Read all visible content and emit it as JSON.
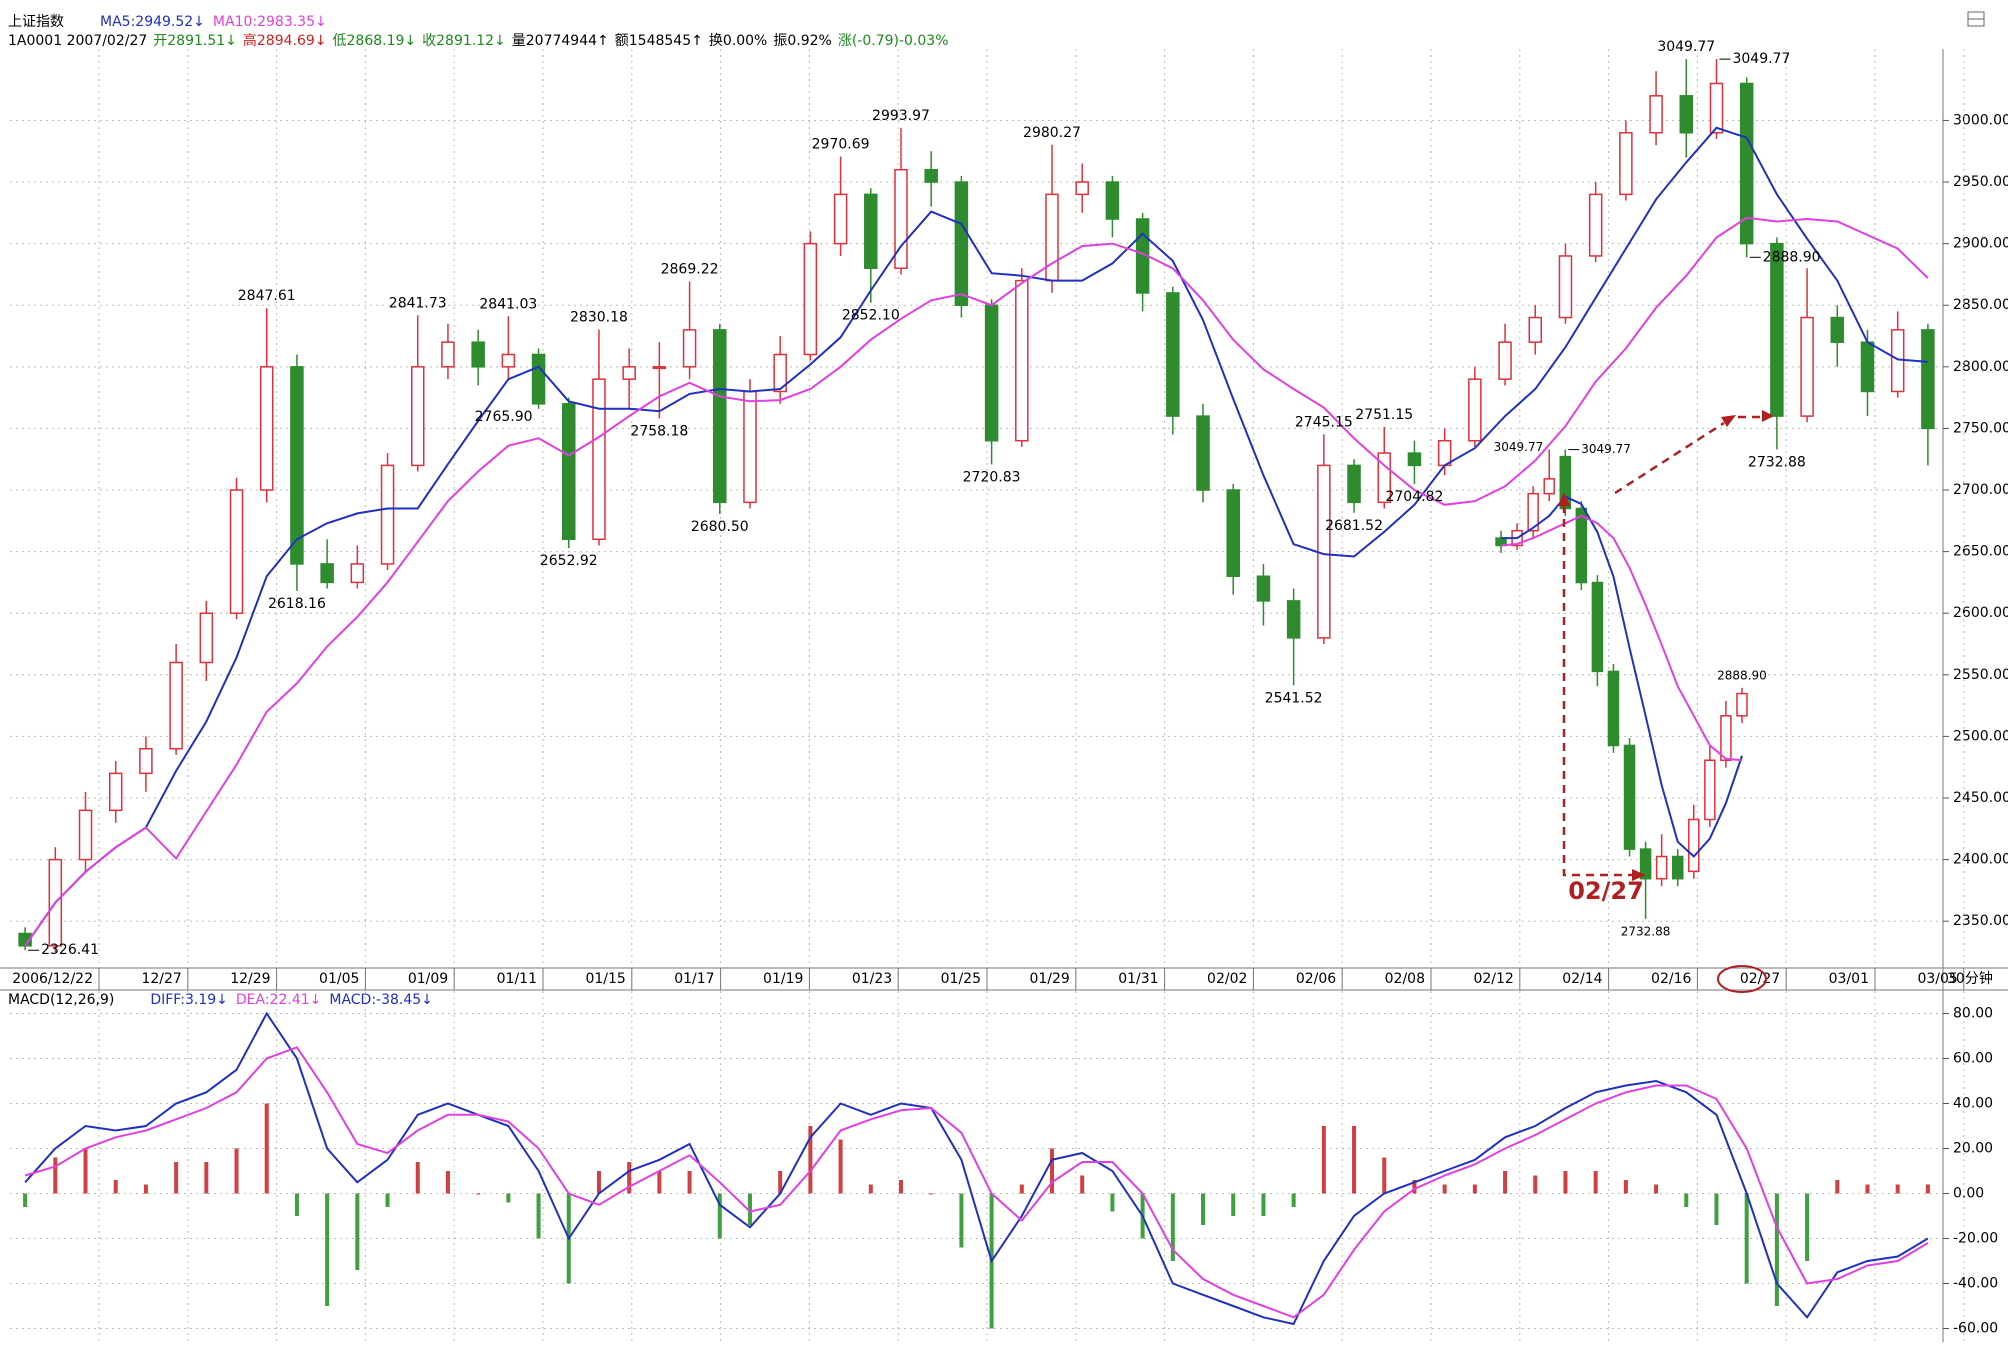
{
  "chart_data": [
    {
      "type": "candlestick",
      "title": "上证指数",
      "quote": [
        {
          "text": "1A0001 2007/02/27",
          "color": "#000000"
        },
        {
          "text": "开2891.51↓",
          "color": "#1a8a1a"
        },
        {
          "text": "高2894.69↓",
          "color": "#d02020"
        },
        {
          "text": "低2868.19↓",
          "color": "#1a8a1a"
        },
        {
          "text": "收2891.12↓",
          "color": "#1a8a1a"
        },
        {
          "text": "量20774944↑",
          "color": "#000000"
        },
        {
          "text": "额1548545↑",
          "color": "#000000"
        },
        {
          "text": "换0.00%",
          "color": "#000000"
        },
        {
          "text": "振0.92%",
          "color": "#000000"
        },
        {
          "text": "涨(-0.79)-0.03%",
          "color": "#1a8a1a"
        }
      ],
      "up_color": "#e0303a",
      "down_color": "#2e8b2e",
      "open": [
        2340,
        2330,
        2400,
        2440,
        2470,
        2490,
        2560,
        2600,
        2700,
        2800,
        2640,
        2625,
        2640,
        2720,
        2800,
        2820,
        2800,
        2810,
        2770,
        2660,
        2790,
        2800,
        2800,
        2830,
        2690,
        2780,
        2810,
        2900,
        2940,
        2880,
        2960,
        2950,
        2850,
        2740,
        2870,
        2940,
        2950,
        2920,
        2860,
        2760,
        2700,
        2630,
        2610,
        2580,
        2720,
        2690,
        2730,
        2720,
        2740,
        2790,
        2820,
        2840,
        2890,
        2940,
        2990,
        3020,
        2990,
        3030,
        2900,
        2760,
        2840,
        2820,
        2780,
        2830
      ],
      "close": [
        2330,
        2400,
        2440,
        2470,
        2490,
        2560,
        2600,
        2700,
        2800,
        2640,
        2625,
        2640,
        2720,
        2800,
        2820,
        2800,
        2810,
        2770,
        2660,
        2790,
        2800,
        2800,
        2830,
        2690,
        2780,
        2810,
        2900,
        2940,
        2880,
        2960,
        2950,
        2850,
        2740,
        2870,
        2940,
        2950,
        2920,
        2860,
        2760,
        2700,
        2630,
        2610,
        2580,
        2720,
        2690,
        2730,
        2720,
        2740,
        2790,
        2820,
        2840,
        2890,
        2940,
        2990,
        3020,
        2990,
        3030,
        2900,
        2760,
        2840,
        2820,
        2780,
        2830,
        2750
      ],
      "high": [
        2345,
        2410,
        2455,
        2480,
        2500,
        2575,
        2610,
        2710,
        2847.61,
        2810,
        2660,
        2655,
        2730,
        2841.73,
        2835,
        2830,
        2841.03,
        2815,
        2775,
        2830.18,
        2815,
        2820,
        2869.22,
        2835,
        2790,
        2825,
        2910,
        2970.69,
        2945,
        2993.97,
        2975,
        2955,
        2855,
        2880,
        2980.27,
        2965,
        2955,
        2925,
        2865,
        2770,
        2705,
        2640,
        2620,
        2745.15,
        2725,
        2751.15,
        2740,
        2750,
        2800,
        2835,
        2850,
        2900,
        2950,
        3000,
        3040,
        3049.77,
        3049.77,
        3035,
        2905,
        2880,
        2850,
        2830,
        2845,
        2835
      ],
      "low": [
        2326.41,
        2325,
        2390,
        2430,
        2455,
        2485,
        2545,
        2595,
        2690,
        2618.16,
        2620,
        2620,
        2635,
        2715,
        2790,
        2785,
        2790,
        2765.9,
        2652.92,
        2655,
        2765,
        2758.18,
        2790,
        2680.5,
        2685,
        2770,
        2805,
        2890,
        2852.1,
        2875,
        2930,
        2840,
        2720.83,
        2735,
        2860,
        2925,
        2905,
        2845,
        2745,
        2690,
        2615,
        2590,
        2541.52,
        2575,
        2681.52,
        2685,
        2704.82,
        2712,
        2735,
        2785,
        2810,
        2835,
        2885,
        2935,
        2980,
        2970,
        2985,
        2888.9,
        2732.88,
        2755,
        2800,
        2760,
        2775,
        2720
      ],
      "series": [
        {
          "name": "MA5:2949.52↓",
          "color": "#2030c0",
          "values": [
            2330,
            2365,
            2390,
            2410,
            2426,
            2472,
            2512,
            2564,
            2630,
            2660,
            2673,
            2681,
            2685,
            2685,
            2721,
            2756,
            2790,
            2800,
            2772,
            2766,
            2766,
            2764,
            2778,
            2782,
            2780,
            2782,
            2802,
            2824,
            2862,
            2898,
            2926,
            2916,
            2876,
            2874,
            2870,
            2870,
            2884,
            2908,
            2886,
            2838,
            2774,
            2712,
            2656,
            2648,
            2646,
            2666,
            2688,
            2720,
            2734,
            2760,
            2782,
            2816,
            2856,
            2896,
            2936,
            2966,
            2994,
            2986,
            2940,
            2904,
            2870,
            2820,
            2806,
            2804
          ]
        },
        {
          "name": "MA10:2983.35↓",
          "color": "#e040e0",
          "values": [
            2330,
            2365,
            2390,
            2410,
            2426,
            2401,
            2439,
            2477,
            2520,
            2543,
            2573,
            2597,
            2625,
            2658,
            2691,
            2715,
            2736,
            2742,
            2728,
            2743,
            2760,
            2776,
            2787,
            2776,
            2772,
            2773,
            2782,
            2800,
            2822,
            2839,
            2854,
            2859,
            2850,
            2868,
            2884,
            2898,
            2900,
            2892,
            2880,
            2854,
            2822,
            2798,
            2782,
            2767,
            2742,
            2720,
            2700,
            2688,
            2691,
            2703,
            2724,
            2752,
            2788,
            2815,
            2848,
            2874,
            2905,
            2921,
            2918,
            2920,
            2918,
            2907,
            2896,
            2872
          ]
        }
      ],
      "ylim": [
        2312,
        3058
      ],
      "yticks": [
        {
          "value": 2350,
          "label": "2350.00"
        },
        {
          "value": 2400,
          "label": "2400.00"
        },
        {
          "value": 2450,
          "label": "2450.00"
        },
        {
          "value": 2500,
          "label": "2500.00"
        },
        {
          "value": 2550,
          "label": "2550.00"
        },
        {
          "value": 2600,
          "label": "2600.00"
        },
        {
          "value": 2650,
          "label": "2650.00"
        },
        {
          "value": 2700,
          "label": "2700.00"
        },
        {
          "value": 2750,
          "label": "2750.00"
        },
        {
          "value": 2800,
          "label": "2800.00"
        },
        {
          "value": 2850,
          "label": "2850.00"
        },
        {
          "value": 2900,
          "label": "2900.00"
        },
        {
          "value": 2950,
          "label": "2950.00"
        },
        {
          "value": 3000,
          "label": "3000.00"
        }
      ],
      "grid": true,
      "x_tick_labels": [
        "2006/12/22",
        "12/27",
        "12/29",
        "01/05",
        "01/09",
        "01/11",
        "01/15",
        "01/17",
        "01/19",
        "01/23",
        "01/25",
        "01/29",
        "01/31",
        "02/02",
        "02/06",
        "02/08",
        "02/12",
        "02/14",
        "02/16",
        "02/27",
        "03/01",
        "03/05"
      ],
      "period": "30分钟",
      "annotations": [
        2326.41,
        2847.61,
        2618.16,
        2841.73,
        2841.03,
        {
          "value": 2765.9,
          "label": "2765.90"
        },
        2652.92,
        2830.18,
        2758.18,
        2869.22,
        {
          "value": 2680.5,
          "label": "2680.50"
        },
        2970.69,
        {
          "value": 2852.1,
          "label": "2852.10"
        },
        2993.97,
        2720.83,
        2980.27,
        2541.52,
        2745.15,
        2681.52,
        2751.15,
        2704.82,
        3049.77,
        3049.77,
        {
          "value": 2888.9,
          "label": "2888.90"
        },
        2732.88
      ]
    },
    {
      "type": "macd",
      "title": "MACD(12,26,9)",
      "up_color": "#d04040",
      "down_color": "#40a040",
      "series": [
        {
          "name": "DIFF:3.19↓",
          "color": "#2030c0",
          "values": [
            5,
            20,
            30,
            28,
            30,
            40,
            45,
            55,
            80,
            60,
            20,
            5,
            15,
            35,
            40,
            35,
            30,
            10,
            -20,
            0,
            10,
            15,
            22,
            -5,
            -15,
            0,
            25,
            40,
            35,
            40,
            38,
            15,
            -30,
            -10,
            15,
            18,
            10,
            -10,
            -40,
            -45,
            -50,
            -55,
            -58,
            -30,
            -10,
            0,
            5,
            10,
            15,
            25,
            30,
            38,
            45,
            48,
            50,
            45,
            35,
            0,
            -40,
            -55,
            -35,
            -30,
            -28,
            -20
          ]
        },
        {
          "name": "DEA:22.41↓",
          "color": "#e040e0",
          "values": [
            8,
            12,
            20,
            25,
            28,
            33,
            38,
            45,
            60,
            65,
            45,
            22,
            18,
            28,
            35,
            35,
            32,
            20,
            0,
            -5,
            3,
            10,
            17,
            5,
            -8,
            -5,
            10,
            28,
            33,
            37,
            38,
            27,
            0,
            -12,
            5,
            14,
            14,
            0,
            -25,
            -38,
            -45,
            -50,
            -55,
            -45,
            -25,
            -8,
            2,
            8,
            13,
            20,
            26,
            33,
            40,
            45,
            48,
            48,
            42,
            20,
            -15,
            -40,
            -38,
            -32,
            -30,
            -22
          ]
        },
        {
          "name": "MACD:-38.45↓",
          "type": "bar",
          "color": "#2030c0",
          "values": [
            -6,
            16,
            20,
            6,
            4,
            14,
            14,
            20,
            40,
            -10,
            -50,
            -34,
            -6,
            14,
            10,
            0,
            -4,
            -20,
            -40,
            10,
            14,
            10,
            10,
            -20,
            -14,
            10,
            30,
            24,
            4,
            6,
            0,
            -24,
            -60,
            4,
            20,
            8,
            -8,
            -20,
            -30,
            -14,
            -10,
            -10,
            -6,
            30,
            30,
            16,
            6,
            4,
            4,
            10,
            8,
            10,
            10,
            6,
            4,
            -6,
            -14,
            -40,
            -50,
            -30,
            6,
            4,
            4,
            4
          ]
        }
      ],
      "ylim": [
        -66,
        90
      ],
      "yticks": [
        {
          "value": -60,
          "label": "-60.00"
        },
        {
          "value": -40,
          "label": "-40.00"
        },
        {
          "value": -20,
          "label": "-20.00"
        },
        {
          "value": 0,
          "label": "0.00"
        },
        {
          "value": 20,
          "label": "20.00"
        },
        {
          "value": 40,
          "label": "40.00"
        },
        {
          "value": 60,
          "label": "60.00"
        },
        {
          "value": 80,
          "label": "80.00"
        }
      ],
      "grid": true
    },
    {
      "type": "candlestick",
      "label": "02/27",
      "up_color": "#e0303a",
      "down_color": "#2e8b2e",
      "open": [
        2990,
        2985,
        2995,
        3020,
        3045,
        3010,
        2960,
        2900,
        2850,
        2780,
        2760,
        2775,
        2765,
        2800,
        2840,
        2870
      ],
      "close": [
        2985,
        2995,
        3020,
        3030,
        3010,
        2960,
        2900,
        2850,
        2780,
        2760,
        2775,
        2760,
        2800,
        2840,
        2870,
        2885
      ],
      "high": [
        2995,
        3000,
        3025,
        3049.77,
        3049.77,
        3015,
        2965,
        2905,
        2855,
        2785,
        2790,
        2780,
        2810,
        2850,
        2880,
        2888.9
      ],
      "low": [
        2980,
        2982,
        2990,
        3015,
        3005,
        2955,
        2890,
        2845,
        2775,
        2732.88,
        2755,
        2755,
        2760,
        2795,
        2835,
        2865
      ],
      "series": [
        {
          "color": "#2030c0",
          "values": [
            2990,
            2990,
            2997,
            3005,
            3018,
            3013,
            2994,
            2964,
            2916,
            2870,
            2823,
            2785,
            2775,
            2787,
            2811,
            2843
          ]
        },
        {
          "color": "#e040e0",
          "values": [
            2985,
            2986,
            2990,
            2995,
            3000,
            3005,
            3000,
            2990,
            2970,
            2945,
            2918,
            2890,
            2870,
            2850,
            2841,
            2840
          ]
        }
      ],
      "ylim": [
        2722,
        3063
      ],
      "annotations": [
        3049.77,
        3049.77,
        {
          "value": 2888.9,
          "label": "2888.90"
        },
        2732.88
      ]
    }
  ]
}
